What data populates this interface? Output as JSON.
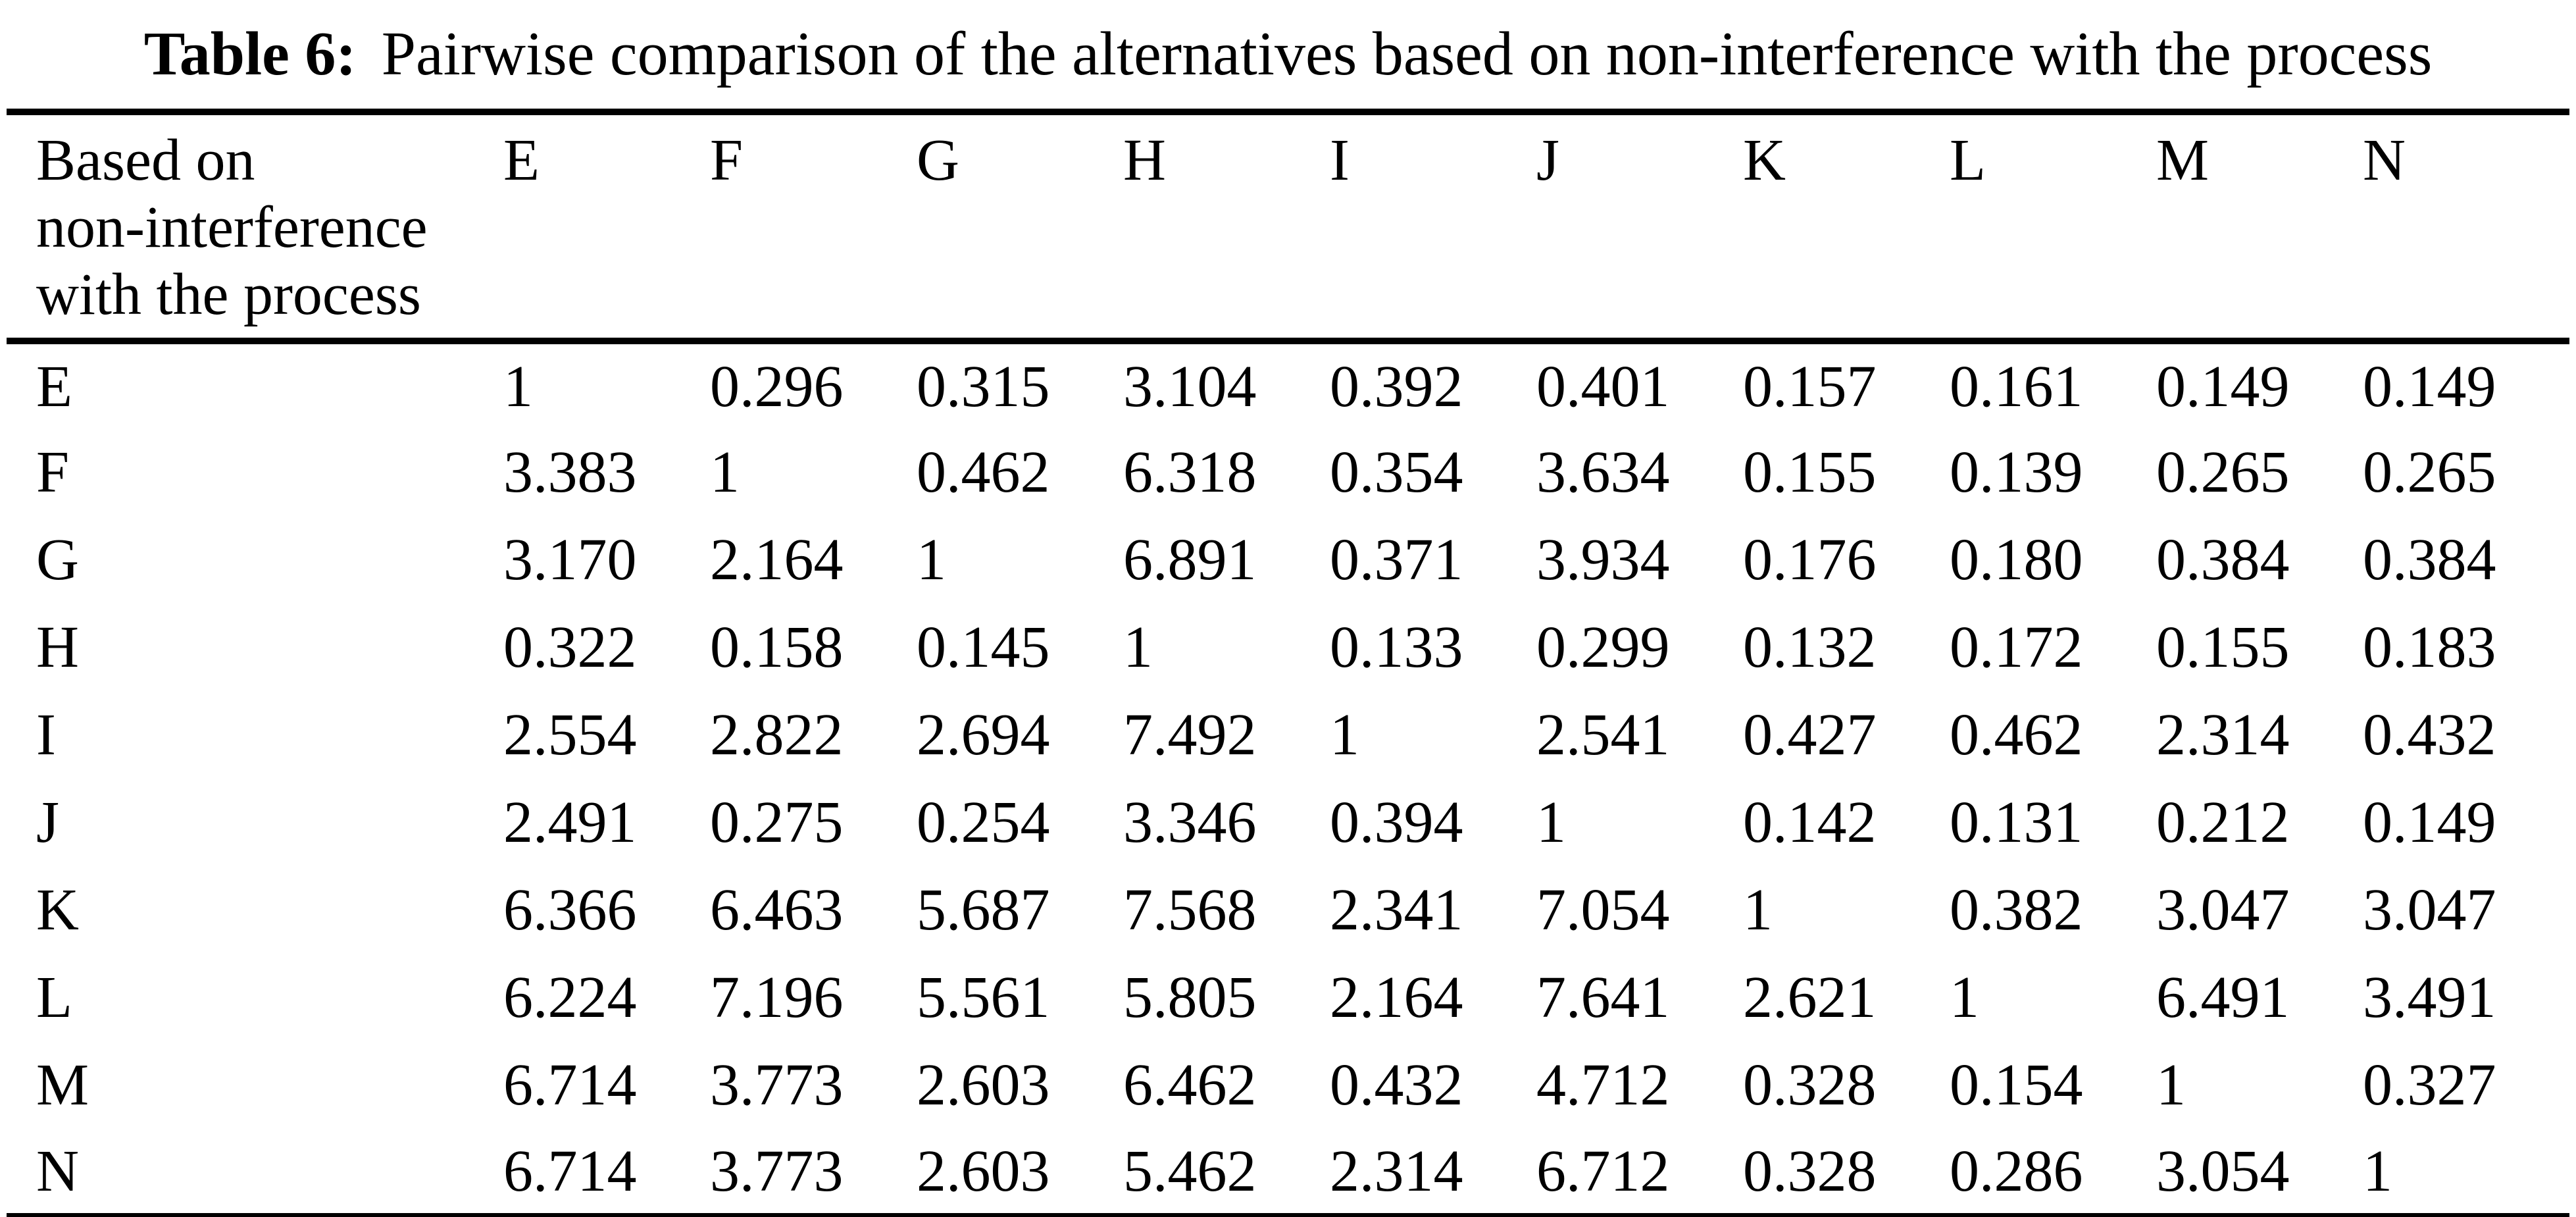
{
  "caption": {
    "label": "Table 6:",
    "text": "Pairwise comparison of the alternatives based on non-interference with the process"
  },
  "table": {
    "corner_header_lines": [
      "Based on",
      "non-interference",
      "with the process"
    ],
    "column_headers": [
      "E",
      "F",
      "G",
      "H",
      "I",
      "J",
      "K",
      "L",
      "M",
      "N"
    ],
    "rows": [
      {
        "label": "E",
        "values": [
          "1",
          "0.296",
          "0.315",
          "3.104",
          "0.392",
          "0.401",
          "0.157",
          "0.161",
          "0.149",
          "0.149"
        ]
      },
      {
        "label": "F",
        "values": [
          "3.383",
          "1",
          "0.462",
          "6.318",
          "0.354",
          "3.634",
          "0.155",
          "0.139",
          "0.265",
          "0.265"
        ]
      },
      {
        "label": "G",
        "values": [
          "3.170",
          "2.164",
          "1",
          "6.891",
          "0.371",
          "3.934",
          "0.176",
          "0.180",
          "0.384",
          "0.384"
        ]
      },
      {
        "label": "H",
        "values": [
          "0.322",
          "0.158",
          "0.145",
          "1",
          "0.133",
          "0.299",
          "0.132",
          "0.172",
          "0.155",
          "0.183"
        ]
      },
      {
        "label": "I",
        "values": [
          "2.554",
          "2.822",
          "2.694",
          "7.492",
          "1",
          "2.541",
          "0.427",
          "0.462",
          "2.314",
          "0.432"
        ]
      },
      {
        "label": "J",
        "values": [
          "2.491",
          "0.275",
          "0.254",
          "3.346",
          "0.394",
          "1",
          "0.142",
          "0.131",
          "0.212",
          "0.149"
        ]
      },
      {
        "label": "K",
        "values": [
          "6.366",
          "6.463",
          "5.687",
          "7.568",
          "2.341",
          "7.054",
          "1",
          "0.382",
          "3.047",
          "3.047"
        ]
      },
      {
        "label": "L",
        "values": [
          "6.224",
          "7.196",
          "5.561",
          "5.805",
          "2.164",
          "7.641",
          "2.621",
          "1",
          "6.491",
          "3.491"
        ]
      },
      {
        "label": "M",
        "values": [
          "6.714",
          "3.773",
          "2.603",
          "6.462",
          "0.432",
          "4.712",
          "0.328",
          "0.154",
          "1",
          "0.327"
        ]
      },
      {
        "label": "N",
        "values": [
          "6.714",
          "3.773",
          "2.603",
          "5.462",
          "2.314",
          "6.712",
          "0.328",
          "0.286",
          "3.054",
          "1"
        ]
      }
    ],
    "text_color": "#000000",
    "background_color": "#ffffff"
  }
}
